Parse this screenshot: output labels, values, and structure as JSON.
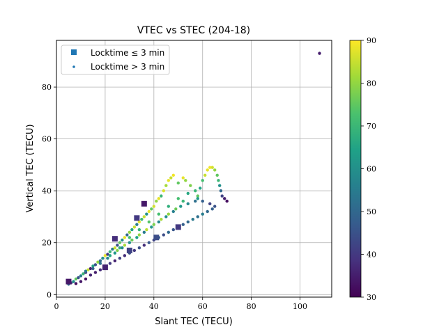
{
  "chart_data": {
    "type": "scatter",
    "title": "VTEC vs STEC (204-18)",
    "xlabel": "Slant TEC (TECU)",
    "ylabel": "Vertical TEC (TECU)",
    "xlim": [
      0,
      113
    ],
    "ylim": [
      -1,
      98
    ],
    "xticks": [
      "0",
      "20",
      "40",
      "60",
      "80",
      "100"
    ],
    "yticks": [
      "0",
      "20",
      "40",
      "60",
      "80"
    ],
    "grid": true,
    "legend": {
      "placement": "upper-left",
      "entries": [
        {
          "label": "Locktime ≤ 3 min",
          "marker": "square"
        },
        {
          "label": "Locktime > 3 min",
          "marker": "dot"
        }
      ]
    },
    "colorbar": {
      "min": 30,
      "max": 90,
      "ticks": [
        "30",
        "40",
        "50",
        "60",
        "70",
        "80",
        "90"
      ],
      "colormap": [
        "#440154",
        "#46327e",
        "#365c8d",
        "#277f8e",
        "#1fa187",
        "#4ac16d",
        "#a0da39",
        "#fde725"
      ]
    },
    "series": [
      {
        "name": "Locktime > 3 min",
        "marker": "dot",
        "points": [
          [
            5,
            4,
            50
          ],
          [
            6,
            4.5,
            40
          ],
          [
            7,
            5,
            60
          ],
          [
            8,
            6,
            75
          ],
          [
            9,
            6.5,
            45
          ],
          [
            10,
            7.2,
            55
          ],
          [
            11,
            8,
            70
          ],
          [
            12,
            8.5,
            40
          ],
          [
            13,
            9.5,
            85
          ],
          [
            14,
            10,
            35
          ],
          [
            15,
            11,
            65
          ],
          [
            16,
            11.5,
            45
          ],
          [
            17,
            12.5,
            80
          ],
          [
            18,
            13,
            50
          ],
          [
            19,
            14,
            60
          ],
          [
            20,
            15,
            88
          ],
          [
            21,
            15.5,
            40
          ],
          [
            22,
            16.5,
            70
          ],
          [
            23,
            17.5,
            55
          ],
          [
            24,
            18,
            85
          ],
          [
            25,
            19,
            45
          ],
          [
            26,
            20,
            75
          ],
          [
            27,
            21,
            60
          ],
          [
            28,
            22,
            88
          ],
          [
            29,
            23,
            50
          ],
          [
            30,
            24,
            80
          ],
          [
            31,
            25,
            65
          ],
          [
            32,
            26,
            85
          ],
          [
            33,
            27,
            55
          ],
          [
            34,
            28,
            88
          ],
          [
            35,
            29,
            70
          ],
          [
            36,
            30,
            85
          ],
          [
            37,
            31,
            60
          ],
          [
            38,
            32,
            88
          ],
          [
            39,
            33,
            75
          ],
          [
            40,
            34,
            86
          ],
          [
            41,
            36,
            80
          ],
          [
            42,
            37,
            88
          ],
          [
            43,
            38,
            70
          ],
          [
            44,
            40,
            87
          ],
          [
            45,
            42,
            82
          ],
          [
            46,
            44,
            88
          ],
          [
            47,
            45,
            85
          ],
          [
            48,
            46,
            89
          ],
          [
            50,
            43,
            75
          ],
          [
            52,
            45,
            88
          ],
          [
            53,
            44,
            80
          ],
          [
            55,
            42,
            78
          ],
          [
            57,
            40,
            70
          ],
          [
            58,
            38,
            75
          ],
          [
            59,
            41,
            65
          ],
          [
            60,
            44,
            72
          ],
          [
            61,
            46,
            85
          ],
          [
            62,
            48,
            88
          ],
          [
            63,
            49,
            89
          ],
          [
            64,
            49,
            86
          ],
          [
            65,
            48,
            80
          ],
          [
            66,
            46,
            75
          ],
          [
            66.5,
            44,
            70
          ],
          [
            67,
            42,
            60
          ],
          [
            67.5,
            40,
            50
          ],
          [
            68,
            38,
            42
          ],
          [
            69,
            37,
            35
          ],
          [
            70,
            36,
            32
          ],
          [
            8,
            4.2,
            32
          ],
          [
            10,
            5,
            34
          ],
          [
            12,
            6,
            33
          ],
          [
            14,
            7.5,
            36
          ],
          [
            16,
            8.5,
            35
          ],
          [
            18,
            9.5,
            38
          ],
          [
            20,
            10.5,
            34
          ],
          [
            22,
            12,
            40
          ],
          [
            24,
            13,
            36
          ],
          [
            26,
            14,
            42
          ],
          [
            28,
            15,
            38
          ],
          [
            30,
            16,
            45
          ],
          [
            32,
            17,
            40
          ],
          [
            34,
            18,
            44
          ],
          [
            36,
            19,
            38
          ],
          [
            38,
            20,
            46
          ],
          [
            40,
            21,
            42
          ],
          [
            42,
            22,
            48
          ],
          [
            44,
            23,
            44
          ],
          [
            46,
            24,
            50
          ],
          [
            48,
            25,
            46
          ],
          [
            50,
            26,
            52
          ],
          [
            52,
            27,
            48
          ],
          [
            54,
            28,
            50
          ],
          [
            56,
            29,
            54
          ],
          [
            58,
            30,
            52
          ],
          [
            60,
            31,
            55
          ],
          [
            62,
            32,
            50
          ],
          [
            64,
            33,
            48
          ],
          [
            65,
            34,
            45
          ],
          [
            12,
            9,
            55
          ],
          [
            15,
            10,
            48
          ],
          [
            18,
            12,
            52
          ],
          [
            21,
            14,
            58
          ],
          [
            24,
            16,
            62
          ],
          [
            27,
            18,
            58
          ],
          [
            30,
            20,
            60
          ],
          [
            33,
            22,
            64
          ],
          [
            36,
            24,
            55
          ],
          [
            39,
            26,
            62
          ],
          [
            42,
            28,
            58
          ],
          [
            45,
            30,
            60
          ],
          [
            48,
            32,
            56
          ],
          [
            51,
            34,
            62
          ],
          [
            54,
            35,
            58
          ],
          [
            57,
            36,
            52
          ],
          [
            60,
            36,
            48
          ],
          [
            63,
            35,
            42
          ],
          [
            25,
            17,
            78
          ],
          [
            28,
            19,
            82
          ],
          [
            31,
            21,
            76
          ],
          [
            34,
            23,
            80
          ],
          [
            37,
            25,
            84
          ],
          [
            40,
            27,
            78
          ],
          [
            43,
            29,
            82
          ],
          [
            46,
            31,
            80
          ],
          [
            49,
            33,
            76
          ],
          [
            52,
            36,
            70
          ],
          [
            22,
            15,
            65
          ],
          [
            26,
            18,
            68
          ],
          [
            30,
            22,
            72
          ],
          [
            34,
            25,
            70
          ],
          [
            38,
            28,
            74
          ],
          [
            42,
            31,
            72
          ],
          [
            46,
            34,
            68
          ],
          [
            50,
            37,
            72
          ],
          [
            54,
            39,
            66
          ],
          [
            58,
            37,
            62
          ],
          [
            108,
            93,
            35
          ]
        ]
      },
      {
        "name": "Locktime ≤ 3 min",
        "marker": "square",
        "points": [
          [
            5,
            5,
            34
          ],
          [
            20,
            10.5,
            36
          ],
          [
            24,
            21.5,
            38
          ],
          [
            36,
            35,
            34
          ],
          [
            33,
            29.5,
            40
          ],
          [
            30,
            17,
            42
          ],
          [
            41,
            22,
            44
          ],
          [
            50,
            26,
            40
          ]
        ]
      }
    ]
  }
}
